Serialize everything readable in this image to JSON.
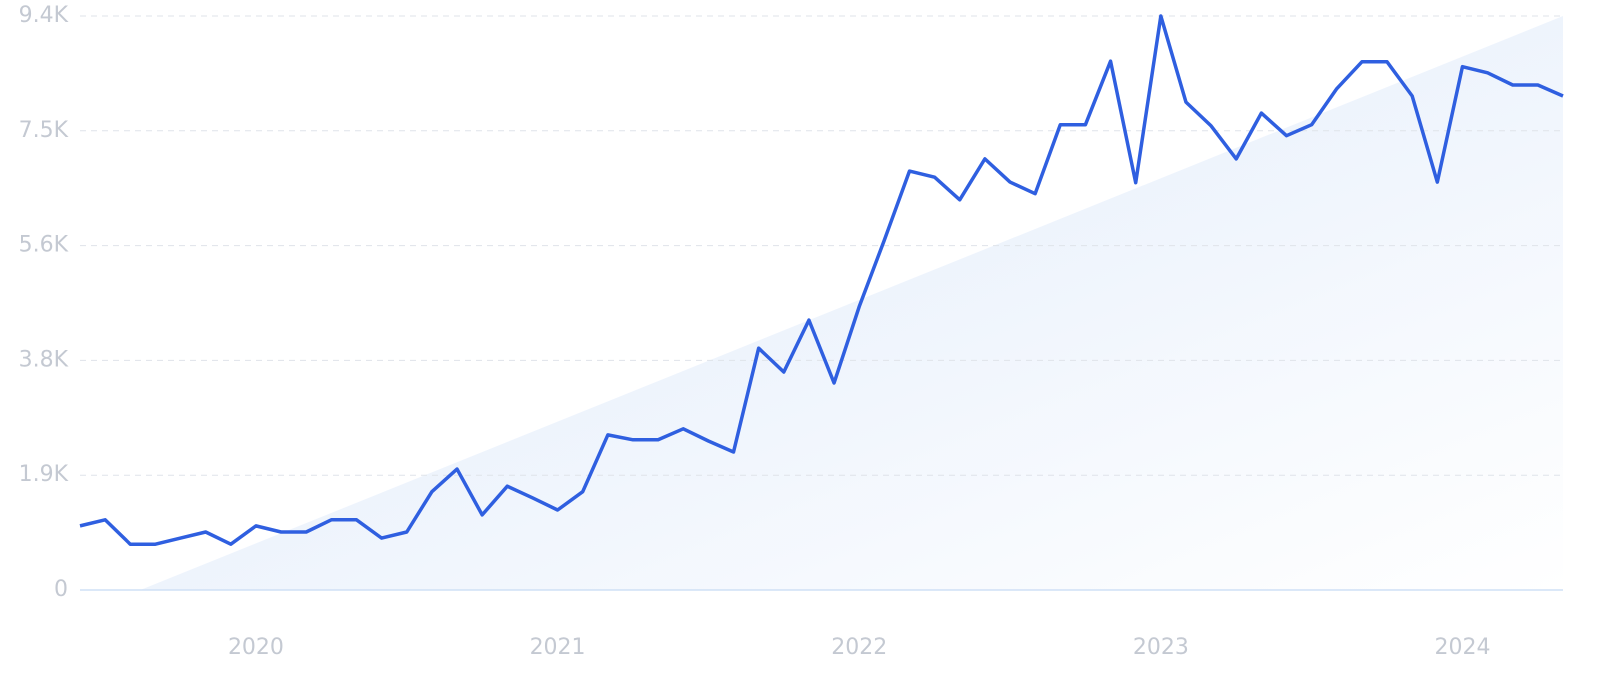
{
  "chart_data": {
    "type": "line",
    "categories": [
      null,
      null,
      null,
      null,
      null,
      null,
      null,
      "2020",
      null,
      null,
      null,
      null,
      null,
      null,
      null,
      null,
      null,
      null,
      null,
      "2021",
      null,
      null,
      null,
      null,
      null,
      null,
      null,
      null,
      null,
      null,
      null,
      "2022",
      null,
      null,
      null,
      null,
      null,
      null,
      null,
      null,
      null,
      null,
      null,
      "2023",
      null,
      null,
      null,
      null,
      null,
      null,
      null,
      null,
      null,
      null,
      null,
      "2024",
      null,
      null,
      null,
      null
    ],
    "series": [
      {
        "color": "#2f5fe0",
        "values": [
          1050,
          1150,
          750,
          750,
          850,
          950,
          750,
          1050,
          950,
          950,
          1150,
          1150,
          850,
          950,
          1610,
          1980,
          1230,
          1700,
          1510,
          1310,
          1610,
          2540,
          2460,
          2460,
          2640,
          2440,
          2260,
          3960,
          3570,
          4420,
          3390,
          4640,
          5730,
          6860,
          6760,
          6390,
          7060,
          6680,
          6490,
          7620,
          7620,
          8660,
          6670,
          9400,
          7990,
          7600,
          7060,
          7810,
          7440,
          7620,
          8210,
          8650,
          8650,
          8090,
          6680,
          8570,
          8470,
          8270,
          8270,
          8090
        ]
      }
    ],
    "ylim": [
      0,
      9400
    ],
    "yticks": [
      0,
      {
        "value": 1880,
        "label": "1.9K"
      },
      {
        "value": 3760,
        "label": "3.8K"
      },
      {
        "value": 5640,
        "label": "5.6K"
      },
      {
        "value": 7520,
        "label": "7.5K"
      },
      {
        "value": 9400,
        "label": "9.4K"
      }
    ],
    "grid": true
  }
}
